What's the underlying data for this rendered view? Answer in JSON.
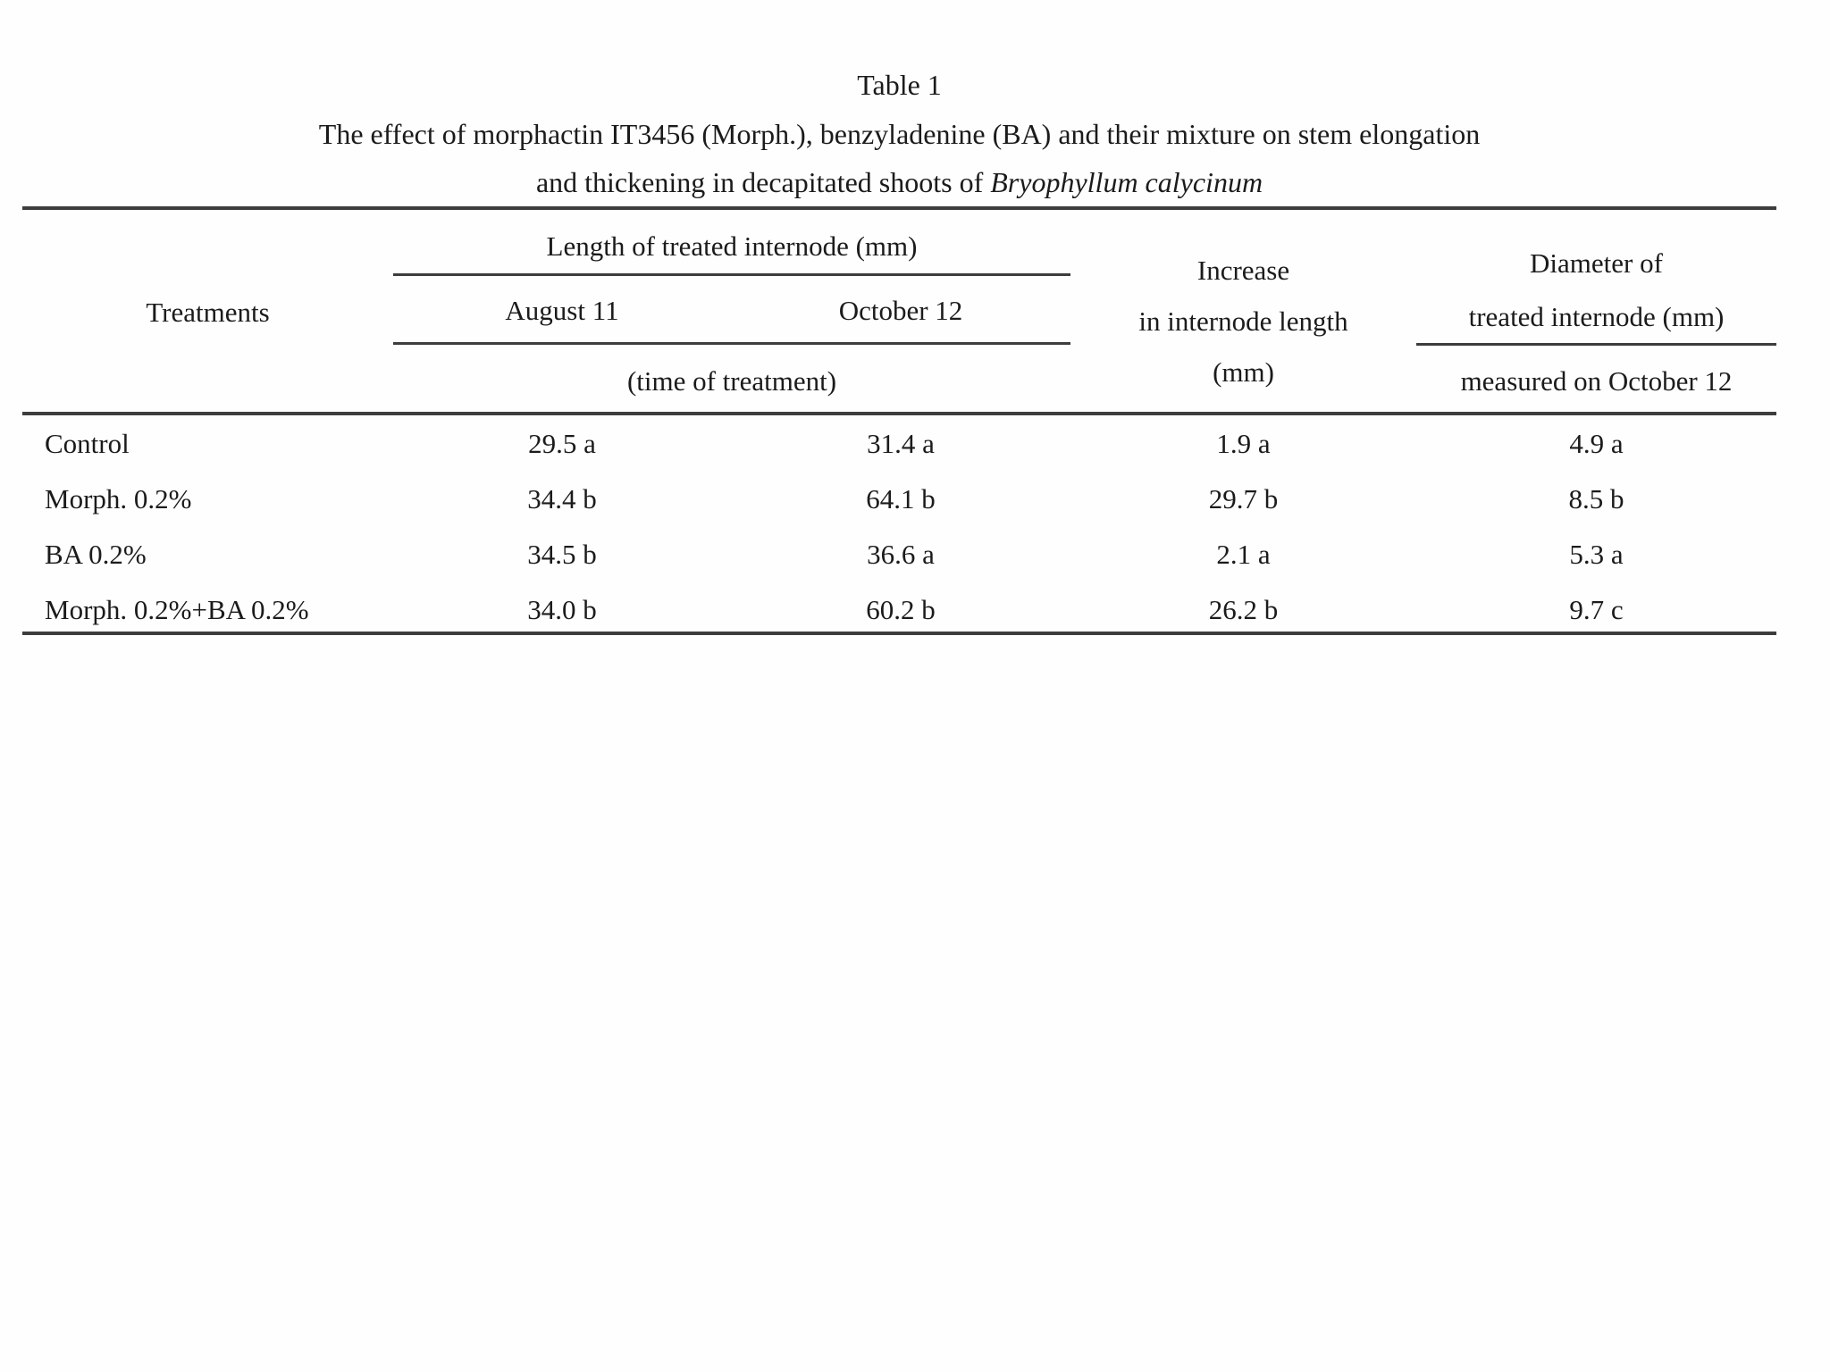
{
  "table": {
    "label": "Table 1",
    "caption_line1": "The effect of morphactin IT3456 (Morph.), benzyladenine (BA) and their mixture on stem elongation",
    "caption_line2_prefix": "and thickening in decapitated shoots of ",
    "caption_species": "Bryophyllum calycinum",
    "rule_color": "#3d3d3d",
    "text_color": "#1b1b1b",
    "header": {
      "treatments": "Treatments",
      "length_group": "Length of treated internode (mm)",
      "august": "August 11",
      "october": "October 12",
      "time_note": "(time of treatment)",
      "increase_line1": "Increase",
      "increase_line2": "in internode length",
      "increase_line3": "(mm)",
      "diameter_line1": "Diameter of",
      "diameter_line2": "treated internode (mm)",
      "diameter_note": "measured on October 12"
    },
    "rows": [
      {
        "treatment": "Control",
        "august": "29.5 a",
        "october": "31.4 a",
        "increase": "1.9 a",
        "diameter": "4.9 a"
      },
      {
        "treatment": "Morph. 0.2%",
        "august": "34.4 b",
        "october": "64.1 b",
        "increase": "29.7 b",
        "diameter": "8.5 b"
      },
      {
        "treatment": "BA 0.2%",
        "august": "34.5 b",
        "october": "36.6 a",
        "increase": "2.1 a",
        "diameter": "5.3 a"
      },
      {
        "treatment": "Morph. 0.2%+BA 0.2%",
        "august": "34.0 b",
        "october": "60.2 b",
        "increase": "26.2 b",
        "diameter": "9.7 c"
      }
    ]
  }
}
